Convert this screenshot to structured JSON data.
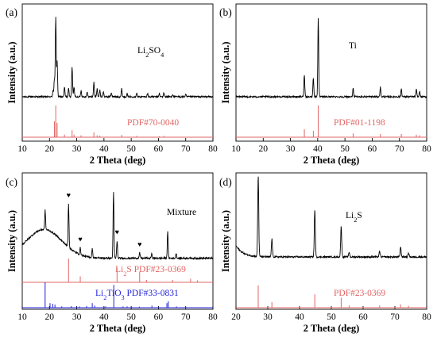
{
  "figure": {
    "panels": [
      {
        "id": "a",
        "label": "(a)"
      },
      {
        "id": "b",
        "label": "(b)"
      },
      {
        "id": "c",
        "label": "(c)"
      },
      {
        "id": "d",
        "label": "(d)"
      }
    ]
  },
  "colors": {
    "pattern_line": "#000000",
    "reference_red": "#e06666",
    "reference_blue": "#1f1fdd",
    "marker_heart": "#7a3b14"
  },
  "chart_data": [
    {
      "id": "a",
      "type": "line",
      "xlabel": "2 Theta (deg)",
      "ylabel": "Intensity (a.u.)",
      "xlim": [
        10,
        80
      ],
      "xticks": [
        "10",
        "20",
        "30",
        "40",
        "50",
        "60",
        "70",
        "80"
      ],
      "annotations": [
        {
          "text": "Li₂SO₄",
          "color": "#000000"
        },
        {
          "text": "PDF#70-0040",
          "color": "#e06666"
        }
      ],
      "series": [
        {
          "role": "measured",
          "peaks": [
            {
              "x": 21.3,
              "h": 0.08
            },
            {
              "x": 21.8,
              "h": 0.22
            },
            {
              "x": 22.3,
              "h": 1.0
            },
            {
              "x": 22.8,
              "h": 0.45
            },
            {
              "x": 25.5,
              "h": 0.12
            },
            {
              "x": 27.0,
              "h": 0.1
            },
            {
              "x": 28.3,
              "h": 0.38
            },
            {
              "x": 29.0,
              "h": 0.12
            },
            {
              "x": 31.6,
              "h": 0.08
            },
            {
              "x": 33.8,
              "h": 0.06
            },
            {
              "x": 36.3,
              "h": 0.18
            },
            {
              "x": 37.5,
              "h": 0.1
            },
            {
              "x": 38.5,
              "h": 0.08
            },
            {
              "x": 39.8,
              "h": 0.06
            },
            {
              "x": 42.7,
              "h": 0.05
            },
            {
              "x": 46.5,
              "h": 0.1
            },
            {
              "x": 48.5,
              "h": 0.04
            },
            {
              "x": 52.0,
              "h": 0.05
            },
            {
              "x": 56.0,
              "h": 0.04
            },
            {
              "x": 60.3,
              "h": 0.04
            },
            {
              "x": 62.0,
              "h": 0.05
            },
            {
              "x": 65.2,
              "h": 0.03
            },
            {
              "x": 70.0,
              "h": 0.03
            }
          ]
        },
        {
          "role": "reference",
          "name": "PDF#70-0040",
          "sticks": [
            {
              "x": 21.8,
              "h": 0.5
            },
            {
              "x": 22.3,
              "h": 1.0
            },
            {
              "x": 22.8,
              "h": 0.45
            },
            {
              "x": 25.5,
              "h": 0.08
            },
            {
              "x": 28.3,
              "h": 0.22
            },
            {
              "x": 29.0,
              "h": 0.08
            },
            {
              "x": 31.6,
              "h": 0.06
            },
            {
              "x": 36.3,
              "h": 0.15
            },
            {
              "x": 37.5,
              "h": 0.06
            },
            {
              "x": 38.5,
              "h": 0.05
            },
            {
              "x": 46.5,
              "h": 0.07
            },
            {
              "x": 52.0,
              "h": 0.04
            },
            {
              "x": 60.3,
              "h": 0.03
            },
            {
              "x": 62.0,
              "h": 0.04
            }
          ]
        }
      ]
    },
    {
      "id": "b",
      "type": "line",
      "xlabel": "2 Theta (deg)",
      "ylabel": "Intensity (a.u.)",
      "xlim": [
        10,
        80
      ],
      "xticks": [
        "10",
        "20",
        "30",
        "40",
        "50",
        "60",
        "70",
        "80"
      ],
      "annotations": [
        {
          "text": "Ti",
          "color": "#000000"
        },
        {
          "text": "PDF#01-1198",
          "color": "#e06666"
        }
      ],
      "series": [
        {
          "role": "measured",
          "peaks": [
            {
              "x": 35.1,
              "h": 0.28
            },
            {
              "x": 38.4,
              "h": 0.24
            },
            {
              "x": 40.2,
              "h": 1.0
            },
            {
              "x": 53.0,
              "h": 0.1
            },
            {
              "x": 63.0,
              "h": 0.12
            },
            {
              "x": 70.7,
              "h": 0.1
            },
            {
              "x": 76.2,
              "h": 0.09
            },
            {
              "x": 77.4,
              "h": 0.07
            }
          ]
        },
        {
          "role": "reference",
          "name": "PDF#01-1198",
          "sticks": [
            {
              "x": 35.1,
              "h": 0.25
            },
            {
              "x": 38.4,
              "h": 0.2
            },
            {
              "x": 40.2,
              "h": 1.0
            },
            {
              "x": 53.0,
              "h": 0.12
            },
            {
              "x": 63.0,
              "h": 0.1
            },
            {
              "x": 70.7,
              "h": 0.1
            },
            {
              "x": 76.2,
              "h": 0.08
            },
            {
              "x": 77.4,
              "h": 0.06
            }
          ]
        }
      ]
    },
    {
      "id": "c",
      "type": "line",
      "xlabel": "2 Theta (deg)",
      "ylabel": "Intensity (a.u.)",
      "xlim": [
        10,
        80
      ],
      "xticks": [
        "10",
        "20",
        "30",
        "40",
        "50",
        "60",
        "70",
        "80"
      ],
      "annotations": [
        {
          "text": "Mixture",
          "color": "#000000"
        },
        {
          "text": "Li₂S PDF#23-0369",
          "color": "#e06666"
        },
        {
          "text": "Li₂TiO₃ PDF#33-0831",
          "color": "#1f1fdd"
        }
      ],
      "markers": [
        {
          "x": 27.0
        },
        {
          "x": 31.3
        },
        {
          "x": 44.8
        },
        {
          "x": 53.1
        }
      ],
      "series": [
        {
          "role": "measured",
          "background": "broad hump near 18 deg",
          "peaks": [
            {
              "x": 18.4,
              "h": 0.22
            },
            {
              "x": 27.0,
              "h": 0.5
            },
            {
              "x": 31.3,
              "h": 0.08
            },
            {
              "x": 35.7,
              "h": 0.1
            },
            {
              "x": 43.5,
              "h": 0.75
            },
            {
              "x": 44.8,
              "h": 0.2
            },
            {
              "x": 53.1,
              "h": 0.06
            },
            {
              "x": 57.5,
              "h": 0.05
            },
            {
              "x": 63.4,
              "h": 0.3
            },
            {
              "x": 66.5,
              "h": 0.06
            }
          ]
        },
        {
          "role": "reference",
          "name": "Li₂S PDF#23-0369",
          "sticks": [
            {
              "x": 27.0,
              "h": 1.0
            },
            {
              "x": 31.3,
              "h": 0.25
            },
            {
              "x": 44.8,
              "h": 0.6
            },
            {
              "x": 53.1,
              "h": 0.45
            },
            {
              "x": 55.6,
              "h": 0.1
            },
            {
              "x": 65.2,
              "h": 0.1
            },
            {
              "x": 71.8,
              "h": 0.15
            },
            {
              "x": 74.3,
              "h": 0.08
            }
          ]
        },
        {
          "role": "reference",
          "name": "Li₂TiO₃ PDF#33-0831",
          "sticks": [
            {
              "x": 18.4,
              "h": 1.0
            },
            {
              "x": 20.2,
              "h": 0.18
            },
            {
              "x": 21.2,
              "h": 0.15
            },
            {
              "x": 22.0,
              "h": 0.12
            },
            {
              "x": 24.5,
              "h": 0.05
            },
            {
              "x": 28.0,
              "h": 0.06
            },
            {
              "x": 31.0,
              "h": 0.05
            },
            {
              "x": 33.6,
              "h": 0.06
            },
            {
              "x": 35.7,
              "h": 0.18
            },
            {
              "x": 36.6,
              "h": 0.08
            },
            {
              "x": 40.6,
              "h": 0.05
            },
            {
              "x": 43.6,
              "h": 0.9
            },
            {
              "x": 47.0,
              "h": 0.05
            },
            {
              "x": 48.5,
              "h": 0.05
            },
            {
              "x": 53.0,
              "h": 0.04
            },
            {
              "x": 57.6,
              "h": 0.08
            },
            {
              "x": 63.1,
              "h": 0.18
            },
            {
              "x": 63.6,
              "h": 0.25
            },
            {
              "x": 66.6,
              "h": 0.05
            }
          ]
        }
      ]
    },
    {
      "id": "d",
      "type": "line",
      "xlabel": "2 Theta (deg)",
      "ylabel": "Intensity (a.u.)",
      "xlim": [
        20,
        80
      ],
      "xticks": [
        "20",
        "30",
        "40",
        "50",
        "60",
        "70",
        "80"
      ],
      "annotations": [
        {
          "text": "Li₂S",
          "color": "#000000"
        },
        {
          "text": "PDF#23-0369",
          "color": "#e06666"
        }
      ],
      "series": [
        {
          "role": "measured",
          "background": "rising baseline below 24 deg",
          "peaks": [
            {
              "x": 27.0,
              "h": 1.0
            },
            {
              "x": 31.3,
              "h": 0.22
            },
            {
              "x": 44.8,
              "h": 0.58
            },
            {
              "x": 53.1,
              "h": 0.38
            },
            {
              "x": 55.6,
              "h": 0.06
            },
            {
              "x": 65.2,
              "h": 0.07
            },
            {
              "x": 71.8,
              "h": 0.12
            },
            {
              "x": 74.3,
              "h": 0.05
            }
          ]
        },
        {
          "role": "reference",
          "name": "PDF#23-0369",
          "sticks": [
            {
              "x": 27.0,
              "h": 1.0
            },
            {
              "x": 31.3,
              "h": 0.25
            },
            {
              "x": 44.8,
              "h": 0.6
            },
            {
              "x": 53.1,
              "h": 0.45
            },
            {
              "x": 55.6,
              "h": 0.1
            },
            {
              "x": 65.2,
              "h": 0.1
            },
            {
              "x": 71.8,
              "h": 0.15
            },
            {
              "x": 74.3,
              "h": 0.08
            }
          ]
        }
      ]
    }
  ]
}
